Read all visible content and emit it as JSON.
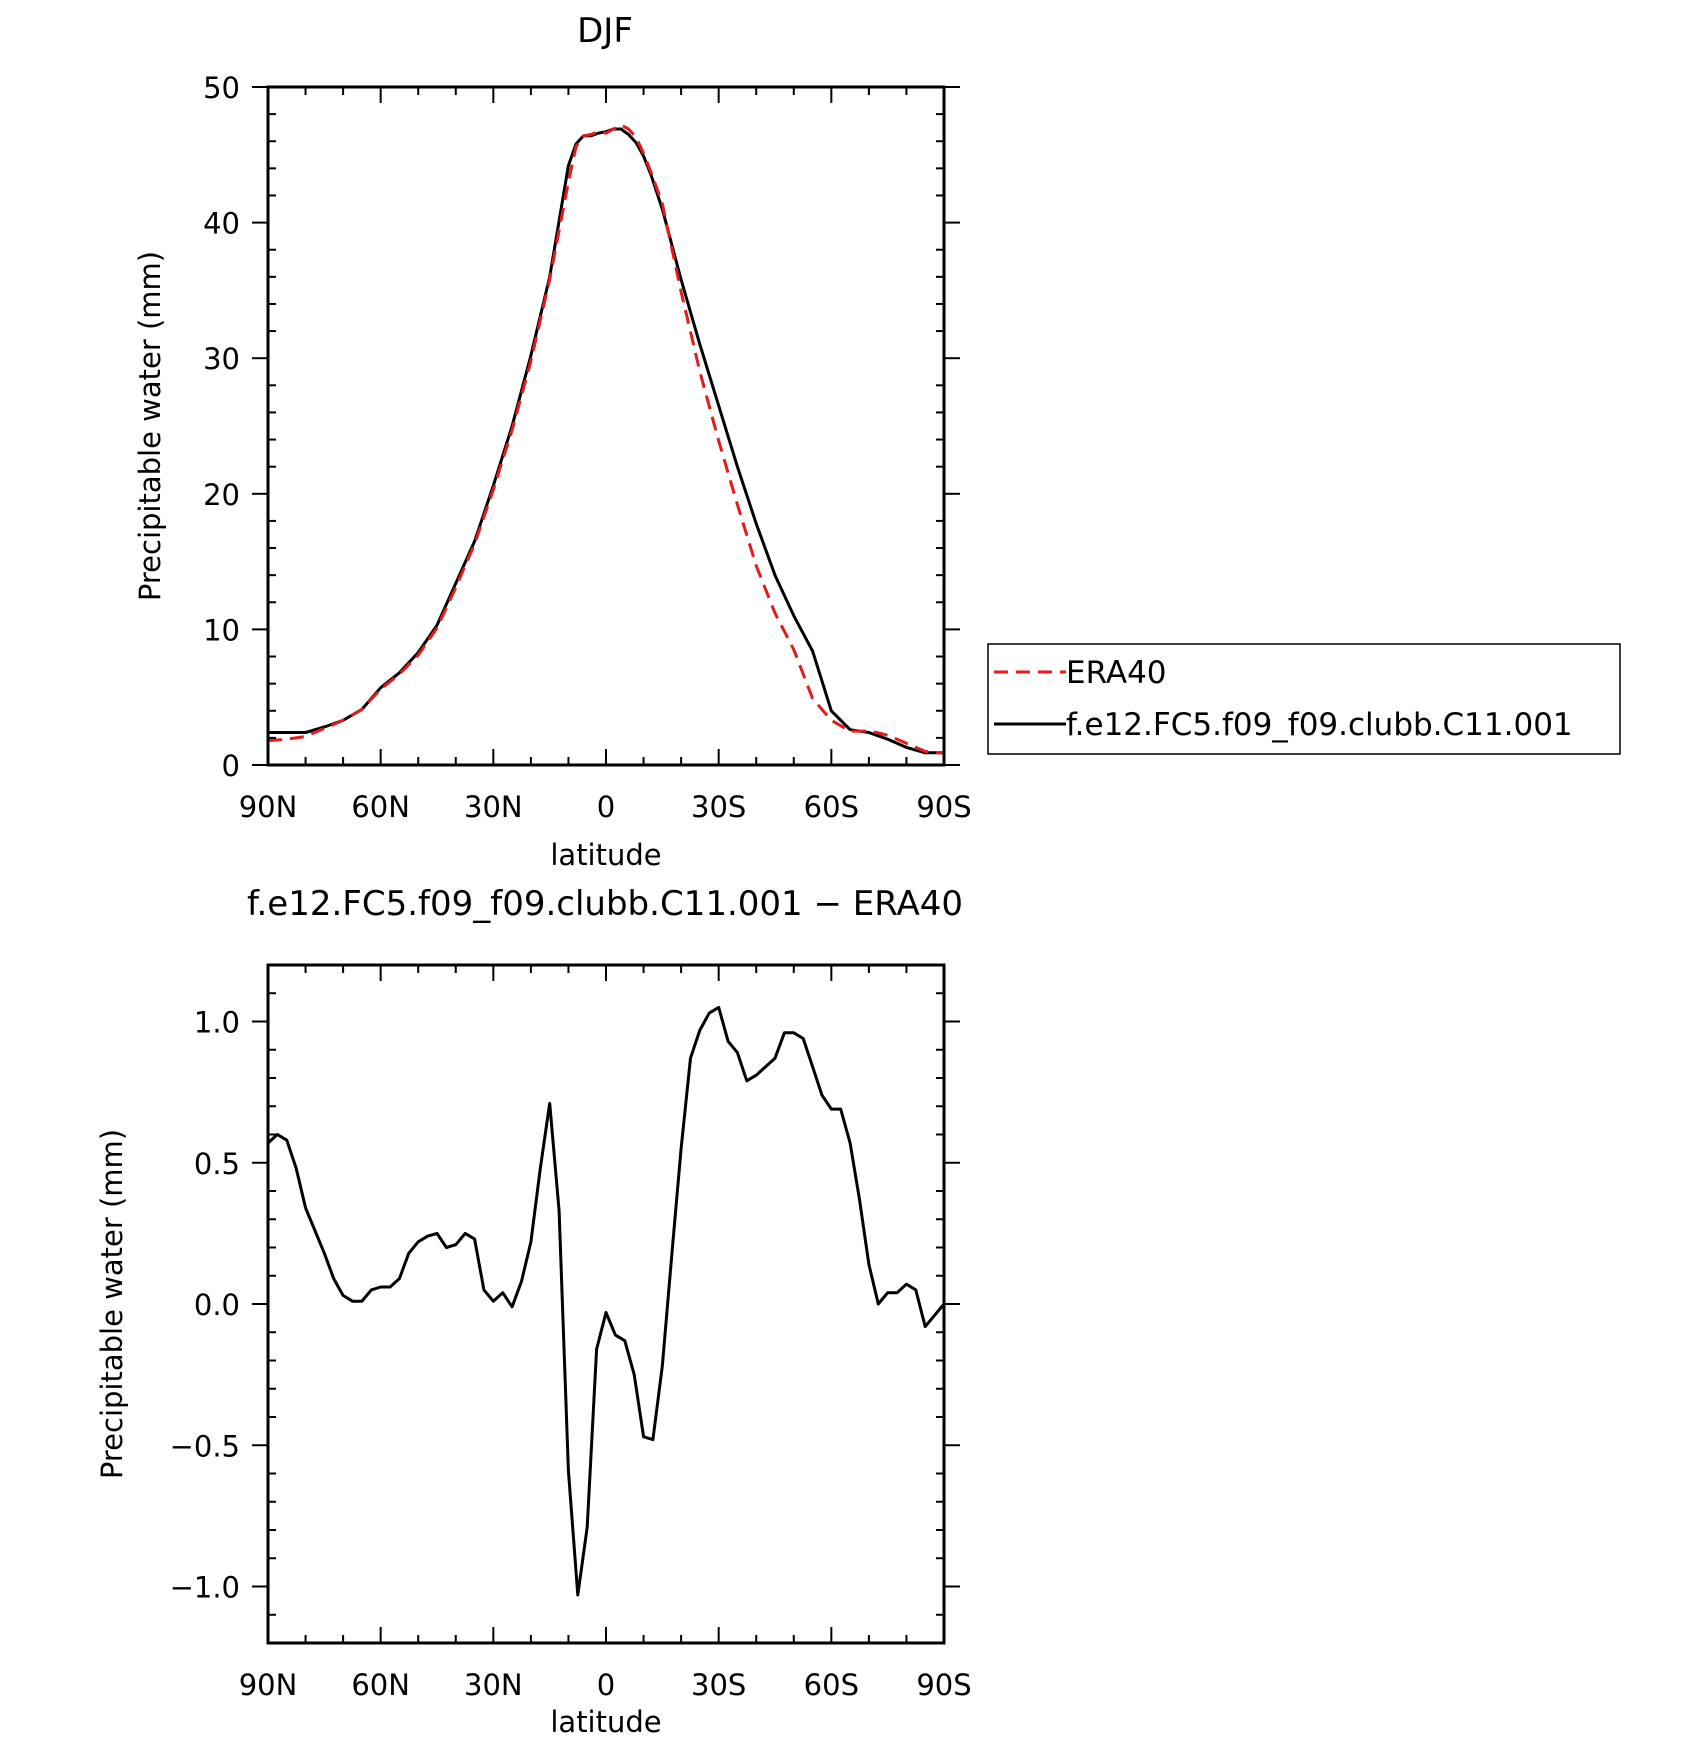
{
  "colors": {
    "era40": "#e41a1c",
    "model": "#000000",
    "axes": "#000000",
    "background": "#ffffff"
  },
  "chart_data": [
    {
      "type": "line",
      "title": "DJF",
      "xlabel": "latitude",
      "ylabel": "Precipitable water (mm)",
      "xlim": [
        -90,
        90
      ],
      "ylim": [
        0,
        50
      ],
      "x_direction": "north-to-south",
      "grid": false,
      "x_ticks": [
        {
          "value": -90,
          "label": "90N"
        },
        {
          "value": -60,
          "label": "60N"
        },
        {
          "value": -30,
          "label": "30N"
        },
        {
          "value": 0,
          "label": "0"
        },
        {
          "value": 30,
          "label": "30S"
        },
        {
          "value": 60,
          "label": "60S"
        },
        {
          "value": 90,
          "label": "90S"
        }
      ],
      "y_ticks": [
        {
          "value": 0,
          "label": "0"
        },
        {
          "value": 10,
          "label": "10"
        },
        {
          "value": 20,
          "label": "20"
        },
        {
          "value": 30,
          "label": "30"
        },
        {
          "value": 40,
          "label": "40"
        },
        {
          "value": 50,
          "label": "50"
        }
      ],
      "legend": {
        "placement": "right",
        "entries": [
          "ERA40",
          "f.e12.FC5.f09_f09.clubb.C11.001"
        ]
      },
      "series": [
        {
          "name": "ERA40",
          "style": "dashed",
          "color": "#e41a1c",
          "x": [
            -90,
            -85,
            -80,
            -75,
            -70,
            -65,
            -60,
            -55,
            -50,
            -45,
            -40,
            -35,
            -30,
            -25,
            -20,
            -15,
            -10,
            -8,
            -6,
            -4,
            -2,
            0,
            2,
            4,
            6,
            8,
            10,
            12,
            15,
            20,
            25,
            30,
            35,
            40,
            45,
            50,
            55,
            60,
            65,
            70,
            72,
            75,
            80,
            85,
            88,
            90
          ],
          "y": [
            1.8,
            1.9,
            2.1,
            2.7,
            3.3,
            4.1,
            5.6,
            6.7,
            8.1,
            10.1,
            13.1,
            16.3,
            20.3,
            24.7,
            29.8,
            35.8,
            43.0,
            45.6,
            46.4,
            46.5,
            46.7,
            46.6,
            46.9,
            47.2,
            46.9,
            46.3,
            45.1,
            43.7,
            41.4,
            34.9,
            29.0,
            23.9,
            19.2,
            14.7,
            11.2,
            8.5,
            4.9,
            3.3,
            2.5,
            2.5,
            2.4,
            2.2,
            1.6,
            1.0,
            0.9,
            0.9
          ]
        },
        {
          "name": "f.e12.FC5.f09_f09.clubb.C11.001",
          "style": "solid",
          "color": "#000000",
          "x": [
            -90,
            -85,
            -80,
            -75,
            -70,
            -65,
            -60,
            -55,
            -50,
            -45,
            -40,
            -35,
            -30,
            -25,
            -20,
            -15,
            -10,
            -8,
            -6,
            -4,
            -2,
            0,
            2,
            4,
            6,
            8,
            10,
            12,
            15,
            20,
            25,
            30,
            35,
            40,
            45,
            50,
            55,
            60,
            65,
            70,
            72,
            75,
            80,
            85,
            88,
            90
          ],
          "y": [
            2.4,
            2.4,
            2.4,
            2.8,
            3.3,
            4.1,
            5.7,
            6.8,
            8.3,
            10.3,
            13.4,
            16.5,
            20.6,
            25.0,
            30.2,
            36.0,
            44.2,
            45.8,
            46.4,
            46.4,
            46.6,
            46.7,
            46.9,
            46.9,
            46.5,
            45.9,
            44.9,
            43.5,
            41.0,
            35.8,
            31.0,
            26.5,
            22.0,
            17.8,
            14.0,
            11.0,
            8.4,
            4.0,
            2.6,
            2.4,
            2.2,
            1.9,
            1.3,
            0.9,
            0.9,
            0.9
          ]
        }
      ]
    },
    {
      "type": "line",
      "title": "f.e12.FC5.f09_f09.clubb.C11.001 − ERA40",
      "xlabel": "latitude",
      "ylabel": "Precipitable water (mm)",
      "xlim": [
        -90,
        90
      ],
      "ylim": [
        -1.2,
        1.2
      ],
      "x_direction": "north-to-south",
      "grid": false,
      "x_ticks": [
        {
          "value": -90,
          "label": "90N"
        },
        {
          "value": -60,
          "label": "60N"
        },
        {
          "value": -30,
          "label": "30N"
        },
        {
          "value": 0,
          "label": "0"
        },
        {
          "value": 30,
          "label": "30S"
        },
        {
          "value": 60,
          "label": "60S"
        },
        {
          "value": 90,
          "label": "90S"
        }
      ],
      "y_ticks": [
        {
          "value": -1.0,
          "label": "−1.0"
        },
        {
          "value": -0.5,
          "label": "−0.5"
        },
        {
          "value": 0.0,
          "label": "0.0"
        },
        {
          "value": 0.5,
          "label": "0.5"
        },
        {
          "value": 1.0,
          "label": "1.0"
        }
      ],
      "series": [
        {
          "style": "solid",
          "color": "#000000",
          "x": [
            -90.0,
            -87.5,
            -85.0,
            -82.5,
            -80.0,
            -77.5,
            -75.0,
            -72.5,
            -70.0,
            -67.5,
            -65.0,
            -62.5,
            -60.0,
            -57.5,
            -55.0,
            -52.5,
            -50.0,
            -47.5,
            -45.0,
            -42.5,
            -40.0,
            -37.5,
            -35.0,
            -32.5,
            -30.0,
            -27.5,
            -25.0,
            -22.5,
            -20.0,
            -17.5,
            -15.0,
            -12.5,
            -10.0,
            -7.5,
            -5.0,
            -2.5,
            0.0,
            2.5,
            5.0,
            7.5,
            10.0,
            12.5,
            15.0,
            17.5,
            20.0,
            22.5,
            25.0,
            27.5,
            30.0,
            32.5,
            35.0,
            37.5,
            40.0,
            42.5,
            45.0,
            47.5,
            50.0,
            52.5,
            55.0,
            57.5,
            60.0,
            62.5,
            65.0,
            67.5,
            70.0,
            72.5,
            75.0,
            77.5,
            80.0,
            82.5,
            85.0,
            87.5,
            90.0
          ],
          "y": [
            0.57,
            0.6,
            0.58,
            0.48,
            0.34,
            0.26,
            0.18,
            0.09,
            0.03,
            0.01,
            0.01,
            0.05,
            0.06,
            0.06,
            0.09,
            0.18,
            0.22,
            0.24,
            0.25,
            0.2,
            0.21,
            0.25,
            0.23,
            0.05,
            0.01,
            0.04,
            -0.01,
            0.08,
            0.22,
            0.48,
            0.71,
            0.33,
            -0.59,
            -1.03,
            -0.79,
            -0.16,
            -0.03,
            -0.11,
            -0.13,
            -0.25,
            -0.47,
            -0.48,
            -0.22,
            0.17,
            0.55,
            0.87,
            0.97,
            1.03,
            1.05,
            0.93,
            0.89,
            0.79,
            0.81,
            0.84,
            0.87,
            0.96,
            0.96,
            0.94,
            0.84,
            0.74,
            0.69,
            0.69,
            0.57,
            0.37,
            0.14,
            0.0,
            0.04,
            0.04,
            0.07,
            0.05,
            -0.08,
            -0.04,
            0.0
          ]
        }
      ]
    }
  ]
}
